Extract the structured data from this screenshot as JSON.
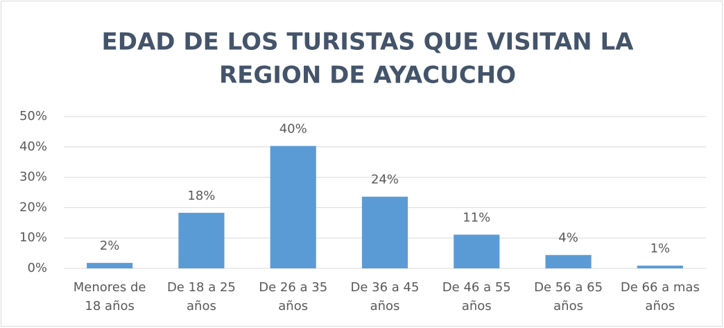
{
  "chart_data": {
    "type": "bar",
    "title": [
      "EDAD DE LOS TURISTAS QUE VISITAN LA",
      "REGION DE AYACUCHO"
    ],
    "categories": [
      "Menores de 18 años",
      "De 18 a 25 años",
      "De 26 a 35 años",
      "De 36 a 45 años",
      "De 46 a 55 años",
      "De 56 a 65 años",
      "De 66 a mas años"
    ],
    "values": [
      1.8,
      18.3,
      40.3,
      23.6,
      11.1,
      4.4,
      0.9
    ],
    "value_labels": [
      "2%",
      "18%",
      "40%",
      "24%",
      "11%",
      "4%",
      "1%"
    ],
    "color": "#5b9bd5",
    "ylim": [
      0,
      50
    ],
    "yticks": [
      {
        "value": 0,
        "label": "0%"
      },
      {
        "value": 10,
        "label": "10%"
      },
      {
        "value": 20,
        "label": "20%"
      },
      {
        "value": 30,
        "label": "30%"
      },
      {
        "value": 40,
        "label": "40%"
      },
      {
        "value": 50,
        "label": "50%"
      }
    ],
    "grid": true
  }
}
